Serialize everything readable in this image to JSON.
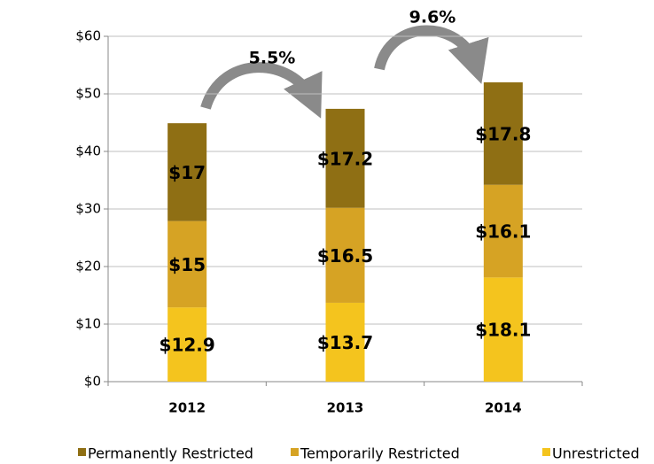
{
  "chart_data": {
    "type": "stacked_bar",
    "categories": [
      "2012",
      "2013",
      "2014"
    ],
    "series": [
      {
        "name": "Permanently Restricted",
        "color": "#8f6f14",
        "values": [
          17,
          17.2,
          17.8
        ],
        "value_labels": [
          "$17",
          "$17.2",
          "$17.8"
        ]
      },
      {
        "name": "Temporarily Restricted",
        "color": "#d6a324",
        "values": [
          15,
          16.5,
          16.1
        ],
        "value_labels": [
          "$15",
          "$16.5",
          "$16.1"
        ]
      },
      {
        "name": "Unrestricted",
        "color": "#f4c41e",
        "values": [
          12.9,
          13.7,
          18.1
        ],
        "value_labels": [
          "$12.9",
          "$13.7",
          "$18.1"
        ]
      }
    ],
    "ylim": [
      0,
      60
    ],
    "yticks": [
      {
        "value": 0,
        "label": "$0"
      },
      {
        "value": 10,
        "label": "$10"
      },
      {
        "value": 20,
        "label": "$20"
      },
      {
        "value": 30,
        "label": "$30"
      },
      {
        "value": 40,
        "label": "$40"
      },
      {
        "value": 50,
        "label": "$50"
      },
      {
        "value": 60,
        "label": "$60"
      }
    ],
    "grid": true,
    "annotations": [
      "5.5%",
      "9.6%"
    ],
    "legend": "bottom"
  }
}
